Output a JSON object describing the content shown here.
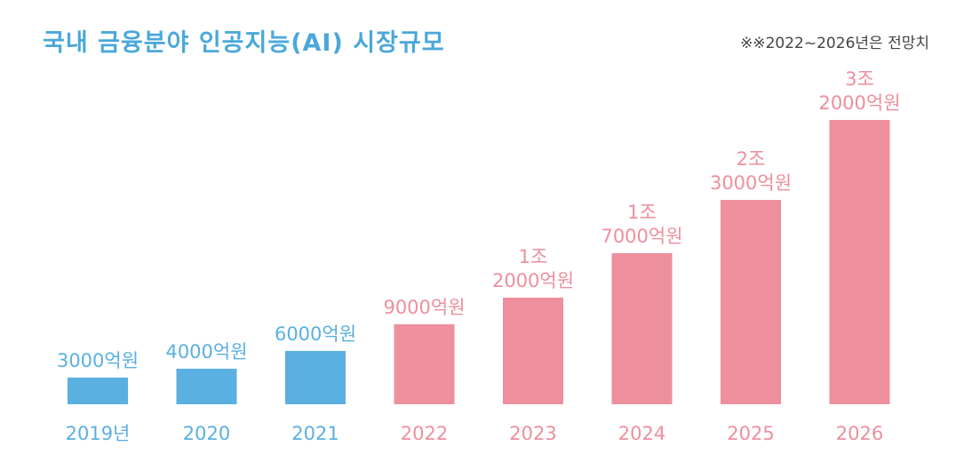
{
  "title": "국내 금융분야 인공지능(AI) 시장규모",
  "note": "※※2022~2026년은 전망치",
  "colors": {
    "actual": "#5ab0e0",
    "forecast": "#ee8f9d",
    "title": "#4aa8da"
  },
  "chart_data": {
    "type": "bar",
    "title": "국내 금융분야 인공지능(AI) 시장규모",
    "xlabel": "",
    "ylabel": "",
    "categories": [
      "2019년",
      "2020",
      "2021",
      "2022",
      "2023",
      "2024",
      "2025",
      "2026"
    ],
    "values": [
      3000,
      4000,
      6000,
      9000,
      12000,
      17000,
      23000,
      32000
    ],
    "unit": "억원",
    "value_labels": [
      [
        "3000억원"
      ],
      [
        "4000억원"
      ],
      [
        "6000억원"
      ],
      [
        "9000억원"
      ],
      [
        "1조",
        "2000억원"
      ],
      [
        "1조",
        "7000억원"
      ],
      [
        "2조",
        "3000억원"
      ],
      [
        "3조",
        "2000억원"
      ]
    ],
    "forecast": [
      false,
      false,
      false,
      true,
      true,
      true,
      true,
      true
    ],
    "ylim": [
      0,
      32000
    ],
    "grid": false,
    "legend": "none"
  }
}
